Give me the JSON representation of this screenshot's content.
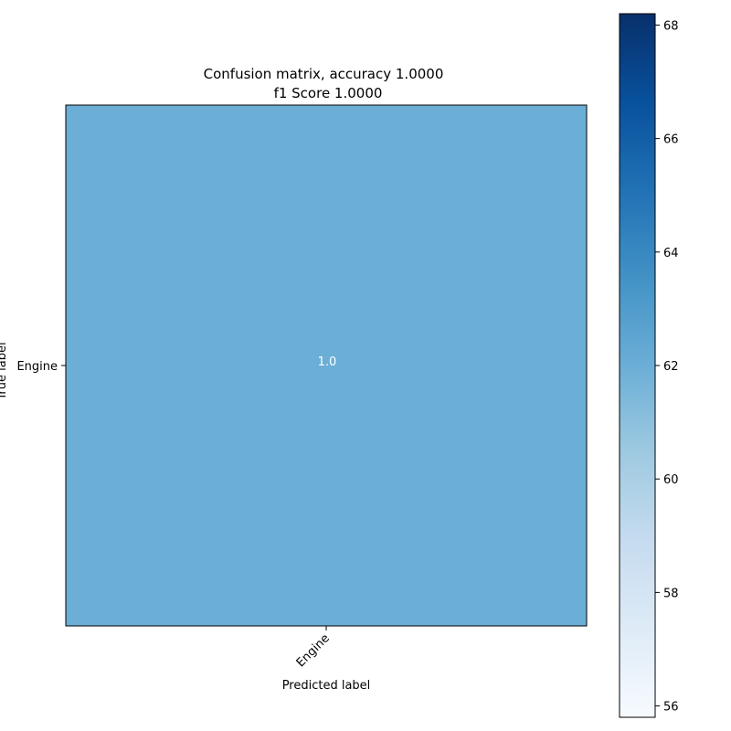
{
  "chart_data": {
    "type": "heatmap",
    "title": "Confusion matrix, accuracy 1.0000",
    "subtitle": "f1 Score 1.0000",
    "xlabel": "Predicted label",
    "ylabel": "True label",
    "x_categories": [
      "Engine"
    ],
    "y_categories": [
      "Engine"
    ],
    "cells": [
      {
        "row": "Engine",
        "col": "Engine",
        "value": 62,
        "label": "1.0"
      }
    ],
    "colorbar": {
      "colormap": "Blues",
      "range": [
        55.8,
        68.2
      ],
      "ticks": [
        56,
        58,
        60,
        62,
        64,
        66,
        68
      ],
      "tick_labels": [
        "56",
        "58",
        "60",
        "62",
        "64",
        "66",
        "68"
      ]
    },
    "colors": {
      "cell_fill": "#6baed6",
      "cell_text": "#ffffff"
    }
  }
}
